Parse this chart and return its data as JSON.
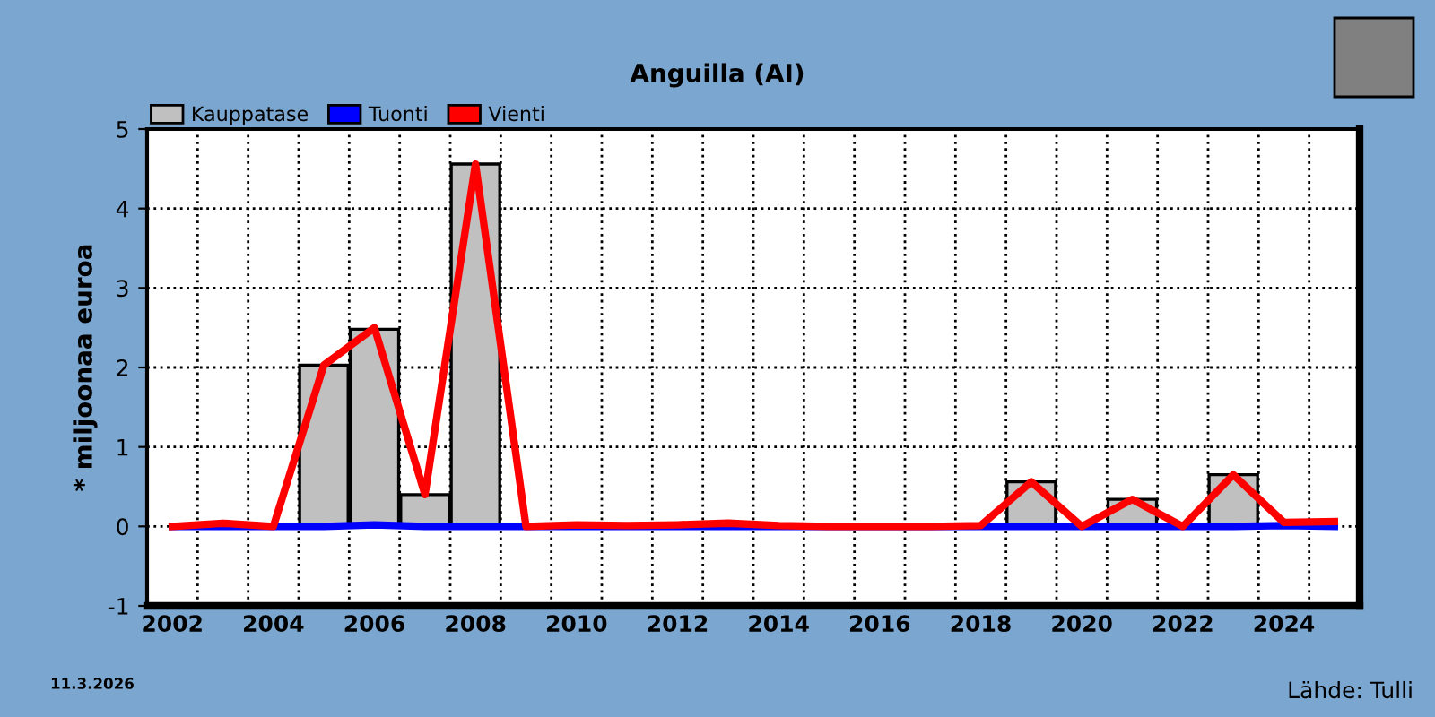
{
  "chart_data": {
    "type": "bar",
    "title": "Anguilla (AI)",
    "ylabel": "* miljoonaa euroa",
    "categories": [
      "2002",
      null,
      "2004",
      null,
      "2006",
      null,
      "2008",
      null,
      "2010",
      null,
      "2012",
      null,
      "2014",
      null,
      "2016",
      null,
      "2018",
      null,
      "2020",
      null,
      "2022",
      null,
      "2024",
      null
    ],
    "series": [
      {
        "name": "Kauppatase",
        "color": "#c0c0c0",
        "values": [
          null,
          null,
          null,
          2.03,
          2.48,
          0.4,
          4.56,
          null,
          null,
          null,
          null,
          null,
          null,
          null,
          null,
          null,
          null,
          0.56,
          null,
          0.34,
          null,
          0.65,
          null,
          null
        ]
      },
      {
        "name": "Tuonti",
        "type": "line",
        "color": "#0000ff",
        "values": [
          0,
          0,
          0,
          0,
          0.02,
          0,
          0,
          0,
          0,
          0,
          0,
          0,
          0,
          0,
          0,
          0,
          0,
          0,
          0,
          0,
          0,
          0,
          0.01,
          0
        ]
      },
      {
        "name": "Vienti",
        "type": "line",
        "color": "#ff0000",
        "values": [
          0,
          0.04,
          0,
          2.03,
          2.5,
          0.4,
          4.56,
          0,
          0.02,
          0.01,
          0.02,
          0.04,
          0.01,
          0,
          0,
          0,
          0.01,
          0.56,
          0,
          0.34,
          0,
          0.65,
          0.05,
          0.06
        ]
      }
    ],
    "ylim": [
      -1,
      5
    ],
    "yticks": [
      -1,
      0,
      1,
      2,
      3,
      4,
      5
    ],
    "grid": true,
    "legend": "top left",
    "annotations": [
      "11.3.2026",
      "Lähde: Tulli"
    ]
  }
}
